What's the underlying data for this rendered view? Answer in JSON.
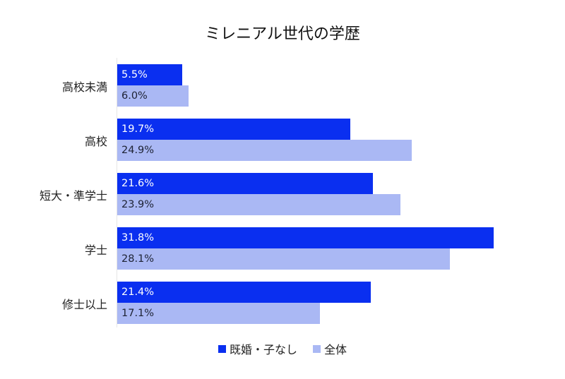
{
  "chart_data": {
    "type": "bar",
    "orientation": "horizontal",
    "title": "ミレニアル世代の学歴",
    "categories": [
      "高校未満",
      "高校",
      "短大・準学士",
      "学士",
      "修士以上"
    ],
    "series": [
      {
        "name": "既婚・子なし",
        "color": "#0a2ff0",
        "values": [
          5.5,
          19.7,
          21.6,
          31.8,
          21.4
        ],
        "labels": [
          "5.5%",
          "19.7%",
          "21.6%",
          "31.8%",
          "21.4%"
        ]
      },
      {
        "name": "全体",
        "color": "#aab8f4",
        "values": [
          6.0,
          24.9,
          23.9,
          28.1,
          17.1
        ],
        "labels": [
          "6.0%",
          "24.9%",
          "23.9%",
          "28.1%",
          "17.1%"
        ]
      }
    ],
    "xlabel": "",
    "ylabel": "",
    "xlim": [
      0,
      35
    ],
    "grid": false,
    "legend_position": "bottom",
    "value_format": "percent"
  }
}
